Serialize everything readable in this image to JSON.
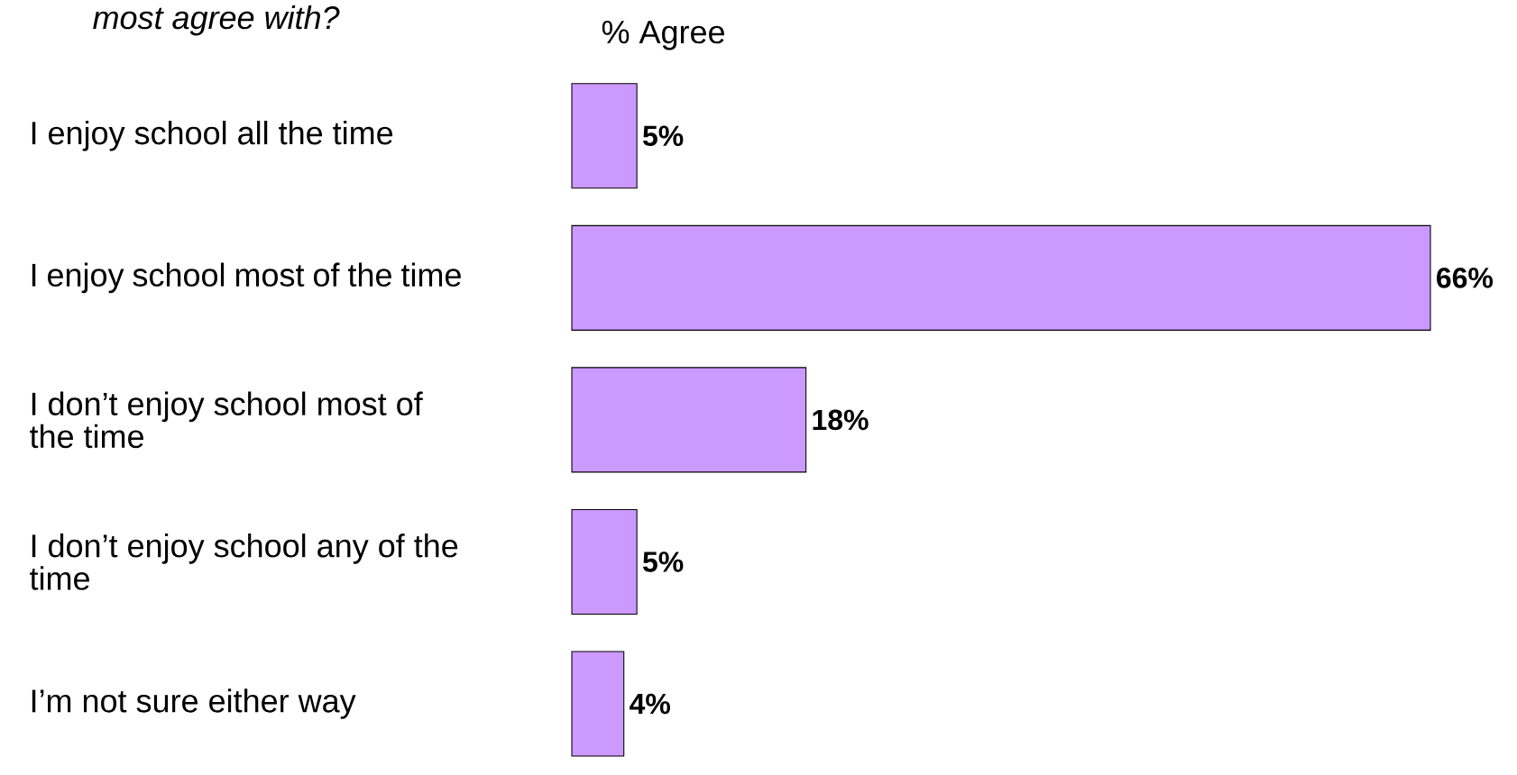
{
  "chart_data": {
    "type": "bar",
    "orientation": "horizontal",
    "title": "*most agree with?*",
    "xlabel": "% Agree",
    "categories": [
      "I enjoy school all the time",
      "I enjoy school most of the time",
      "I don’t enjoy school most of the time",
      "I don’t enjoy school any of the time",
      "I’m not sure either way"
    ],
    "values": [
      5,
      66,
      18,
      5,
      4
    ],
    "value_labels": [
      "5%",
      "66%",
      "18%",
      "5%",
      "4%"
    ],
    "color": "#cc99ff"
  }
}
